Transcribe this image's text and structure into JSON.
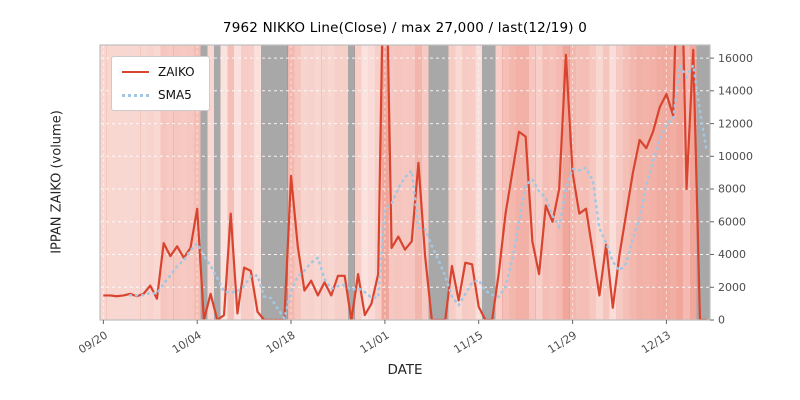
{
  "chart_data": {
    "type": "line",
    "title": "7962 NIKKO Line(Close) / max 27,000 / last(12/19) 0",
    "xlabel": "DATE",
    "ylabel": "IPPAN ZAIKO (volume)",
    "ylim": [
      0,
      16800
    ],
    "yticks": [
      0,
      2000,
      4000,
      6000,
      8000,
      10000,
      12000,
      14000,
      16000
    ],
    "xticks": [
      {
        "index": 0,
        "label": "09/20"
      },
      {
        "index": 14,
        "label": "10/04"
      },
      {
        "index": 28,
        "label": "10/18"
      },
      {
        "index": 42,
        "label": "11/01"
      },
      {
        "index": 56,
        "label": "11/15"
      },
      {
        "index": 70,
        "label": "11/29"
      },
      {
        "index": 84,
        "label": "12/13"
      }
    ],
    "n_points": 91,
    "legend_position": "upper-left",
    "grid": true,
    "series": [
      {
        "name": "ZAIKO",
        "style": "solid",
        "color": "#d9442f",
        "values": [
          1500,
          1500,
          1450,
          1500,
          1600,
          1450,
          1600,
          2100,
          1300,
          4700,
          3900,
          4500,
          3800,
          4400,
          6800,
          0,
          1600,
          0,
          300,
          6500,
          400,
          3200,
          3000,
          500,
          0,
          0,
          0,
          0,
          8800,
          4500,
          1800,
          2400,
          1500,
          2300,
          1500,
          2700,
          2700,
          0,
          2800,
          300,
          1000,
          2800,
          27000,
          4400,
          5100,
          4300,
          4800,
          9600,
          3900,
          0,
          0,
          0,
          3300,
          1200,
          3500,
          3400,
          800,
          0,
          0,
          2900,
          6500,
          9000,
          11500,
          11200,
          4800,
          2800,
          7000,
          6000,
          8000,
          16200,
          9000,
          6500,
          6800,
          4200,
          1500,
          4600,
          750,
          4000,
          6500,
          9000,
          11000,
          10500,
          11500,
          13000,
          13800,
          12500,
          27000,
          8000,
          16500,
          0,
          0
        ]
      },
      {
        "name": "SMA5",
        "style": "dotted",
        "color": "#a3c7e3",
        "values": [
          null,
          null,
          null,
          null,
          1510,
          1500,
          1520,
          1650,
          1610,
          2230,
          2720,
          3300,
          3640,
          4260,
          4680,
          3900,
          3320,
          2560,
          1740,
          1680,
          1760,
          2080,
          2680,
          2720,
          1420,
          1340,
          700,
          100,
          1760,
          2660,
          3020,
          3500,
          3800,
          2500,
          1900,
          2080,
          2140,
          1840,
          1940,
          1700,
          1360,
          1380,
          6780,
          7100,
          8060,
          8720,
          9120,
          5640,
          5540,
          4520,
          3660,
          2700,
          1440,
          900,
          1600,
          2280,
          2440,
          1780,
          1540,
          1420,
          2040,
          3680,
          5980,
          8220,
          8600,
          7860,
          7460,
          6360,
          5720,
          8000,
          9240,
          9140,
          9300,
          8540,
          5600,
          4720,
          3570,
          3010,
          3470,
          4970,
          6250,
          8200,
          9700,
          11000,
          11960,
          12260,
          15560,
          14860,
          15560,
          12800,
          10300
        ]
      }
    ],
    "background": {
      "heat_color": "#e0442c",
      "zero_day_color": "#9e9e9e",
      "spine_color": "#bfbfbf",
      "tick_color": "#666666",
      "tick_label_color": "#4d4d4d",
      "gridline_color": "#ffffff"
    }
  }
}
